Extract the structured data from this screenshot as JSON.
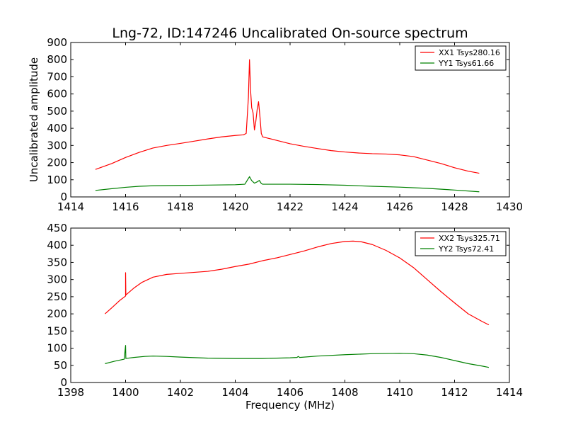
{
  "figure": {
    "title": "Lng-72, ID:147246 Uncalibrated On-source spectrum",
    "ylabel": "Uncalibrated amplitude",
    "xlabel": "Frequency (MHz)"
  },
  "colors": {
    "red": "#ff0000",
    "green": "#008000"
  },
  "chart_data": [
    {
      "type": "line",
      "xlim": [
        1414,
        1430
      ],
      "ylim": [
        0,
        900
      ],
      "xticks": [
        1414,
        1416,
        1418,
        1420,
        1422,
        1424,
        1426,
        1428,
        1430
      ],
      "yticks": [
        0,
        100,
        200,
        300,
        400,
        500,
        600,
        700,
        800,
        900
      ],
      "legend_position": "top-right",
      "series": [
        {
          "name": "XX1 Tsys280.16",
          "color": "#ff0000",
          "x": [
            1414.9,
            1415.5,
            1416.0,
            1416.5,
            1417.0,
            1417.5,
            1418.0,
            1418.5,
            1419.0,
            1419.5,
            1420.0,
            1420.3,
            1420.4,
            1420.48,
            1420.52,
            1420.56,
            1420.6,
            1420.65,
            1420.7,
            1420.75,
            1420.8,
            1420.85,
            1420.9,
            1420.95,
            1421.0,
            1421.2,
            1421.5,
            1422.0,
            1422.5,
            1423.0,
            1423.5,
            1424.0,
            1424.5,
            1425.0,
            1425.5,
            1426.0,
            1426.5,
            1427.0,
            1427.5,
            1428.0,
            1428.5,
            1428.9
          ],
          "y": [
            160,
            195,
            230,
            260,
            285,
            300,
            312,
            325,
            338,
            350,
            358,
            362,
            370,
            580,
            800,
            620,
            520,
            490,
            390,
            440,
            510,
            555,
            470,
            370,
            350,
            342,
            330,
            310,
            295,
            282,
            270,
            262,
            256,
            252,
            250,
            245,
            235,
            215,
            195,
            170,
            150,
            138
          ]
        },
        {
          "name": "YY1 Tsys61.66",
          "color": "#008000",
          "x": [
            1414.9,
            1415.5,
            1416.0,
            1416.5,
            1417.0,
            1418.0,
            1419.0,
            1420.0,
            1420.35,
            1420.45,
            1420.52,
            1420.6,
            1420.7,
            1420.8,
            1420.88,
            1420.95,
            1421.0,
            1421.5,
            1422.0,
            1423.0,
            1424.0,
            1425.0,
            1426.0,
            1427.0,
            1428.0,
            1428.9
          ],
          "y": [
            38,
            48,
            56,
            62,
            65,
            67,
            69,
            71,
            74,
            100,
            118,
            95,
            80,
            88,
            96,
            78,
            74,
            74,
            74,
            72,
            68,
            62,
            57,
            50,
            40,
            30
          ]
        }
      ]
    },
    {
      "type": "line",
      "xlim": [
        1398,
        1414
      ],
      "ylim": [
        0,
        450
      ],
      "xticks": [
        1398,
        1400,
        1402,
        1404,
        1406,
        1408,
        1410,
        1412,
        1414
      ],
      "yticks": [
        0,
        50,
        100,
        150,
        200,
        250,
        300,
        350,
        400,
        450
      ],
      "legend_position": "top-right",
      "series": [
        {
          "name": "XX2 Tsys325.71",
          "color": "#ff0000",
          "x": [
            1399.25,
            1399.5,
            1399.8,
            1400.0,
            1400.0,
            1400.01,
            1400.3,
            1400.6,
            1401.0,
            1401.5,
            1402.0,
            1403.0,
            1403.5,
            1404.0,
            1404.5,
            1405.0,
            1405.5,
            1406.0,
            1406.5,
            1407.0,
            1407.5,
            1408.0,
            1408.3,
            1408.6,
            1409.0,
            1409.5,
            1410.0,
            1410.5,
            1411.0,
            1411.5,
            1412.0,
            1412.5,
            1413.0,
            1413.25
          ],
          "y": [
            200,
            218,
            240,
            252,
            320,
            255,
            275,
            292,
            307,
            315,
            318,
            324,
            330,
            338,
            345,
            355,
            363,
            373,
            383,
            395,
            405,
            411,
            412,
            410,
            402,
            385,
            363,
            335,
            300,
            265,
            232,
            200,
            178,
            168
          ]
        },
        {
          "name": "YY2 Tsys72.41",
          "color": "#008000",
          "x": [
            1399.25,
            1399.6,
            1399.95,
            1400.0,
            1400.01,
            1400.3,
            1400.7,
            1401.0,
            1401.5,
            1402.0,
            1403.0,
            1404.0,
            1405.0,
            1406.0,
            1406.25,
            1406.3,
            1406.35,
            1407.0,
            1408.0,
            1409.0,
            1410.0,
            1410.5,
            1411.0,
            1411.5,
            1412.0,
            1412.5,
            1413.0,
            1413.25
          ],
          "y": [
            55,
            62,
            68,
            108,
            70,
            73,
            76,
            77,
            76,
            74,
            71,
            70,
            70,
            72,
            73,
            76,
            73,
            77,
            81,
            84,
            85,
            84,
            80,
            73,
            64,
            55,
            48,
            44
          ]
        }
      ]
    }
  ]
}
